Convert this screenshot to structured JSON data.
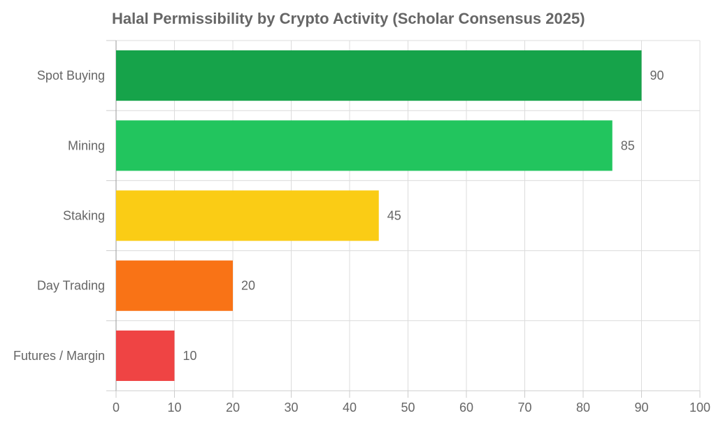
{
  "chart_data": {
    "type": "bar",
    "orientation": "horizontal",
    "title": "Halal Permissibility by Crypto Activity (Scholar Consensus 2025)",
    "xlabel": "",
    "ylabel": "",
    "categories": [
      "Spot Buying",
      "Mining",
      "Staking",
      "Day Trading",
      "Futures / Margin"
    ],
    "values": [
      90,
      85,
      45,
      20,
      10
    ],
    "colors": [
      "#16a34a",
      "#22c55e",
      "#facc15",
      "#f97316",
      "#ef4444"
    ],
    "xlim": [
      0,
      100
    ],
    "xticks": [
      0,
      10,
      20,
      30,
      40,
      50,
      60,
      70,
      80,
      90,
      100
    ],
    "grid": true,
    "data_labels": true,
    "legend": "none"
  }
}
